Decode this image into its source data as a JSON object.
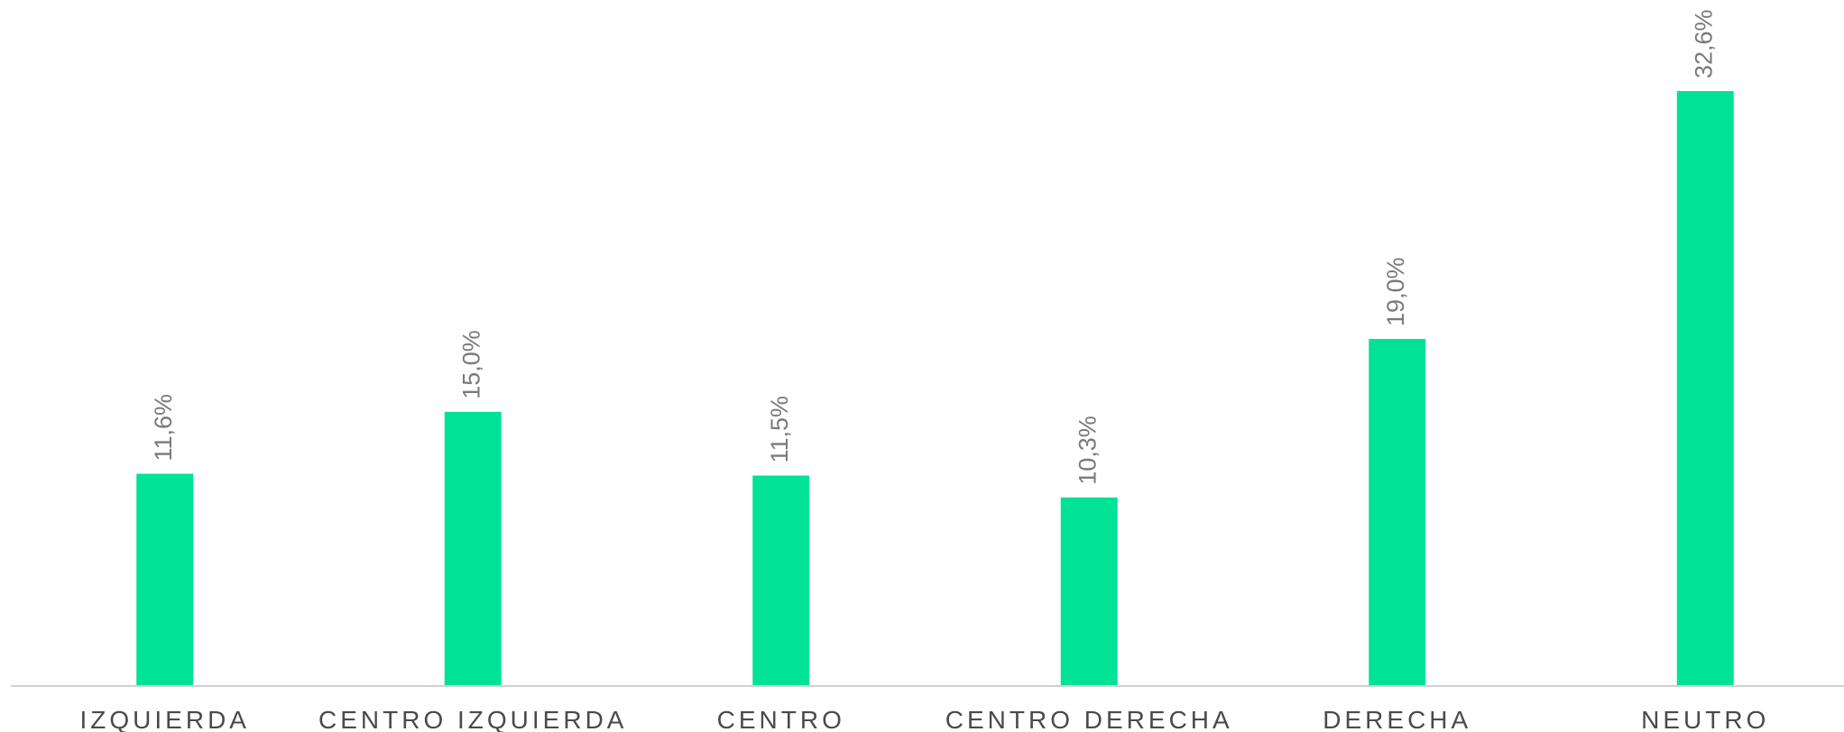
{
  "chart_data": {
    "type": "bar",
    "categories": [
      "IZQUIERDA",
      "CENTRO IZQUIERDA",
      "CENTRO",
      "CENTRO DERECHA",
      "DERECHA",
      "NEUTRO"
    ],
    "values": [
      11.6,
      15.0,
      11.5,
      10.3,
      19.0,
      32.6
    ],
    "value_labels": [
      "11,6%",
      "15,0%",
      "11,5%",
      "10,3%",
      "19,0%",
      "32,6%"
    ],
    "color": "#00e396",
    "ylim": [
      0,
      37.6
    ]
  }
}
